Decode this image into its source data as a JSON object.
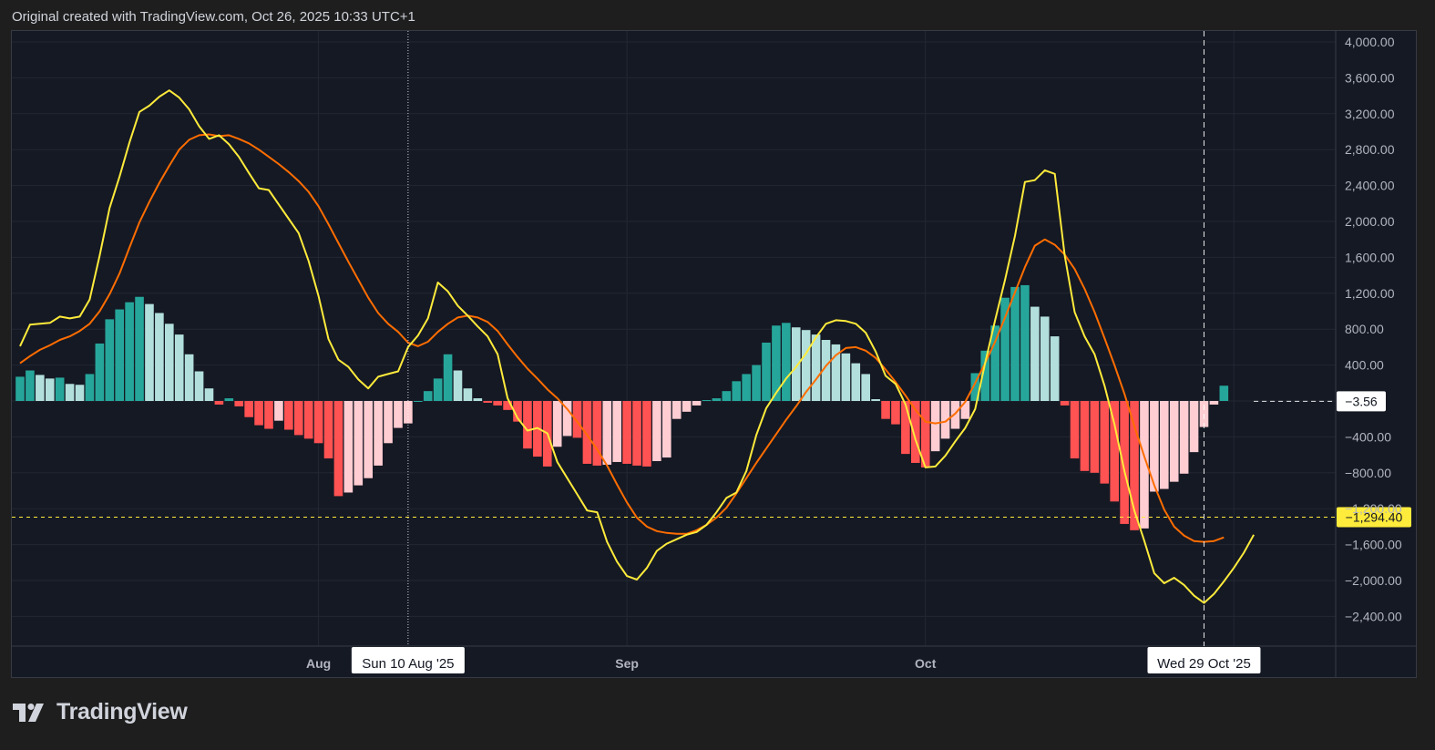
{
  "header": {
    "attribution": "Original created with TradingView.com, Oct 26, 2025 10:33 UTC+1"
  },
  "brand": {
    "name": "TradingView"
  },
  "colors": {
    "background": "#151924",
    "page_background": "#1e1e1e",
    "grid": "#232732",
    "macd_line": "#ffeb3b",
    "signal_line": "#ff6d00",
    "hist_pos_strong": "#26a69a",
    "hist_pos_weak": "#b2dfdb",
    "hist_neg_strong": "#ff5252",
    "hist_neg_weak": "#ffcdd2",
    "axis_text": "#b2b5be"
  },
  "chart_data": {
    "type": "line",
    "indicator": "MACD",
    "ylim": [
      -2700,
      4100
    ],
    "y_ticks": [
      4000,
      3600,
      3200,
      2800,
      2400,
      2000,
      1600,
      1200,
      800,
      400,
      0,
      -400,
      -800,
      -1200,
      -1600,
      -2000,
      -2400
    ],
    "y_tick_labels": [
      "4,000.00",
      "3,600.00",
      "3,200.00",
      "2,800.00",
      "2,400.00",
      "2,000.00",
      "1,600.00",
      "1,200.00",
      "800.00",
      "400.00",
      "",
      "−400.00",
      "−800.00",
      "−1,200.00",
      "−1,600.00",
      "−2,000.00",
      "−2,400.00"
    ],
    "x_ticks": [
      {
        "label": "Aug",
        "index": 30
      },
      {
        "label": "Sep",
        "index": 61
      },
      {
        "label": "Oct",
        "index": 91
      }
    ],
    "crosshair": {
      "x_label": "Sun 10 Aug '25",
      "x_index": 39,
      "right_x_label": "Wed 29 Oct '25",
      "right_x_index": 119
    },
    "price_labels": [
      {
        "text": "−3.56",
        "value": -3.56,
        "style": "current"
      },
      {
        "text": "−1,294.40",
        "value": -1294.4,
        "style": "highlight"
      }
    ],
    "grid": true,
    "series": [
      {
        "key": "macd",
        "values": [
          610,
          850,
          860,
          870,
          940,
          920,
          940,
          1130,
          1620,
          2150,
          2500,
          2880,
          3220,
          3290,
          3390,
          3460,
          3380,
          3250,
          3060,
          2920,
          2960,
          2860,
          2720,
          2540,
          2370,
          2350,
          2190,
          2030,
          1870,
          1560,
          1170,
          690,
          460,
          380,
          240,
          140,
          270,
          300,
          330,
          600,
          730,
          920,
          1320,
          1220,
          1060,
          950,
          830,
          720,
          520,
          30,
          -190,
          -330,
          -300,
          -360,
          -680,
          -860,
          -1040,
          -1220,
          -1240,
          -1570,
          -1790,
          -1950,
          -1990,
          -1860,
          -1670,
          -1590,
          -1540,
          -1490,
          -1460,
          -1380,
          -1240,
          -1080,
          -1020,
          -780,
          -380,
          -80,
          90,
          250,
          380,
          530,
          710,
          860,
          900,
          890,
          860,
          760,
          550,
          280,
          190,
          -40,
          -430,
          -740,
          -730,
          -610,
          -450,
          -300,
          -90,
          420,
          900,
          1350,
          1840,
          2440,
          2460,
          2570,
          2530,
          1620,
          990,
          720,
          520,
          170,
          -260,
          -780,
          -1220,
          -1560,
          -1920,
          -2030,
          -1970,
          -2050,
          -2170,
          -2250,
          -2150,
          -2010,
          -1860,
          -1690,
          -1490
        ]
      },
      {
        "key": "signal",
        "values": [
          420,
          500,
          570,
          620,
          680,
          720,
          780,
          860,
          1000,
          1190,
          1420,
          1710,
          1990,
          2220,
          2430,
          2620,
          2800,
          2910,
          2960,
          2970,
          2950,
          2960,
          2920,
          2870,
          2800,
          2720,
          2640,
          2550,
          2450,
          2330,
          2170,
          1970,
          1760,
          1550,
          1350,
          1150,
          980,
          860,
          770,
          650,
          610,
          660,
          770,
          860,
          930,
          950,
          930,
          880,
          780,
          630,
          490,
          360,
          250,
          130,
          30,
          -90,
          -230,
          -380,
          -540,
          -720,
          -930,
          -1130,
          -1300,
          -1400,
          -1450,
          -1470,
          -1480,
          -1480,
          -1440,
          -1380,
          -1300,
          -1190,
          -1030,
          -860,
          -690,
          -530,
          -370,
          -210,
          -60,
          100,
          240,
          390,
          510,
          590,
          600,
          560,
          480,
          350,
          210,
          60,
          -100,
          -230,
          -250,
          -230,
          -140,
          -10,
          200,
          420,
          660,
          930,
          1210,
          1490,
          1730,
          1800,
          1740,
          1630,
          1470,
          1250,
          990,
          700,
          400,
          80,
          -280,
          -620,
          -940,
          -1210,
          -1400,
          -1500,
          -1560,
          -1570,
          -1560,
          -1520
        ]
      },
      {
        "key": "histogram",
        "values": [
          270,
          340,
          290,
          250,
          260,
          190,
          180,
          300,
          640,
          910,
          1020,
          1100,
          1160,
          1080,
          980,
          860,
          740,
          520,
          330,
          140,
          -40,
          30,
          -60,
          -180,
          -270,
          -310,
          -220,
          -320,
          -380,
          -420,
          -470,
          -640,
          -1060,
          -1020,
          -940,
          -860,
          -720,
          -470,
          -300,
          -250,
          0,
          110,
          250,
          520,
          340,
          140,
          30,
          -20,
          -50,
          -100,
          -230,
          -530,
          -620,
          -730,
          -510,
          -390,
          -410,
          -700,
          -720,
          -710,
          -680,
          -700,
          -720,
          -730,
          -670,
          -630,
          -200,
          -120,
          -50,
          10,
          30,
          110,
          220,
          300,
          400,
          650,
          840,
          870,
          820,
          790,
          740,
          680,
          630,
          530,
          420,
          300,
          20,
          -200,
          -260,
          -590,
          -690,
          -740,
          -560,
          -420,
          -310,
          -200,
          310,
          560,
          840,
          1150,
          1270,
          1290,
          1050,
          940,
          720,
          -50,
          -640,
          -780,
          -800,
          -920,
          -1120,
          -1370,
          -1440,
          -1420,
          -1010,
          -980,
          -900,
          -810,
          -570,
          -290,
          -40,
          170
        ]
      }
    ]
  }
}
